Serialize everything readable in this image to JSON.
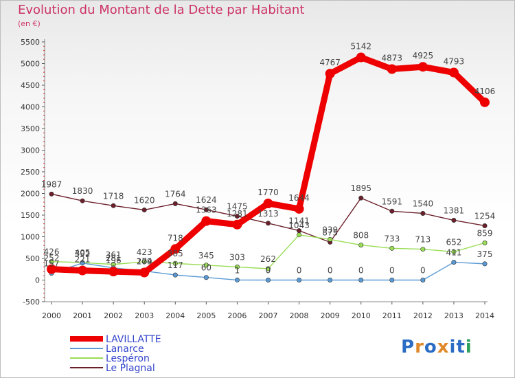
{
  "title": "Evolution du Montant de la Dette par Habitant",
  "unit": "(en €)",
  "brand": "Proxiti",
  "chart_data": {
    "type": "line",
    "categories": [
      "2000",
      "2001",
      "2002",
      "2003",
      "2004",
      "2005",
      "2006",
      "2007",
      "2008",
      "2009",
      "2010",
      "2011",
      "2012",
      "2013",
      "2014"
    ],
    "ylim": [
      -500,
      5500
    ],
    "yticks": [
      -500,
      0,
      500,
      1000,
      1500,
      2000,
      2500,
      3000,
      3500,
      4000,
      4500,
      5000,
      5500
    ],
    "grid": false,
    "legend_position": "bottom-left",
    "series": [
      {
        "name": "LAVILLATTE",
        "color": "#ee0000",
        "values": [
          252,
          221,
          196,
          174,
          718,
          1363,
          1281,
          1770,
          1644,
          4767,
          5142,
          4873,
          4925,
          4793,
          4106
        ],
        "labels": [
          "252",
          "221",
          "196",
          "174",
          "718",
          "1363",
          "1281",
          "1770",
          "1644",
          "4767",
          "5142",
          "4873",
          "4925",
          "4793",
          "4106"
        ]
      },
      {
        "name": "Lanarce",
        "color": "#5b9bd5",
        "values": [
          157,
          392,
          281,
          209,
          117,
          60,
          1,
          0,
          0,
          0,
          0,
          0,
          0,
          411,
          375
        ],
        "labels": [
          "157",
          "392",
          "281",
          "209",
          "117",
          "60",
          "1",
          "0",
          "0",
          "0",
          "0",
          "0",
          "0",
          "411",
          "375"
        ]
      },
      {
        "name": "Lespéron",
        "color": "#99dd55",
        "values": [
          426,
          405,
          361,
          423,
          385,
          345,
          303,
          262,
          1043,
          939,
          808,
          733,
          713,
          652,
          859
        ],
        "labels": [
          "426",
          "405",
          "361",
          "423",
          "385",
          "345",
          "303",
          "262",
          "1043",
          "939",
          "808",
          "733",
          "713",
          "652",
          "859"
        ]
      },
      {
        "name": "Le Plagnal",
        "color": "#6b1f2a",
        "values": [
          1987,
          1830,
          1718,
          1620,
          1764,
          1624,
          1475,
          1313,
          1141,
          875,
          1895,
          1591,
          1540,
          1381,
          1254
        ],
        "labels": [
          "1987",
          "1830",
          "1718",
          "1620",
          "1764",
          "1624",
          "1475",
          "1313",
          "1141",
          "875",
          "1895",
          "1591",
          "1540",
          "1381",
          "1254"
        ]
      }
    ]
  }
}
